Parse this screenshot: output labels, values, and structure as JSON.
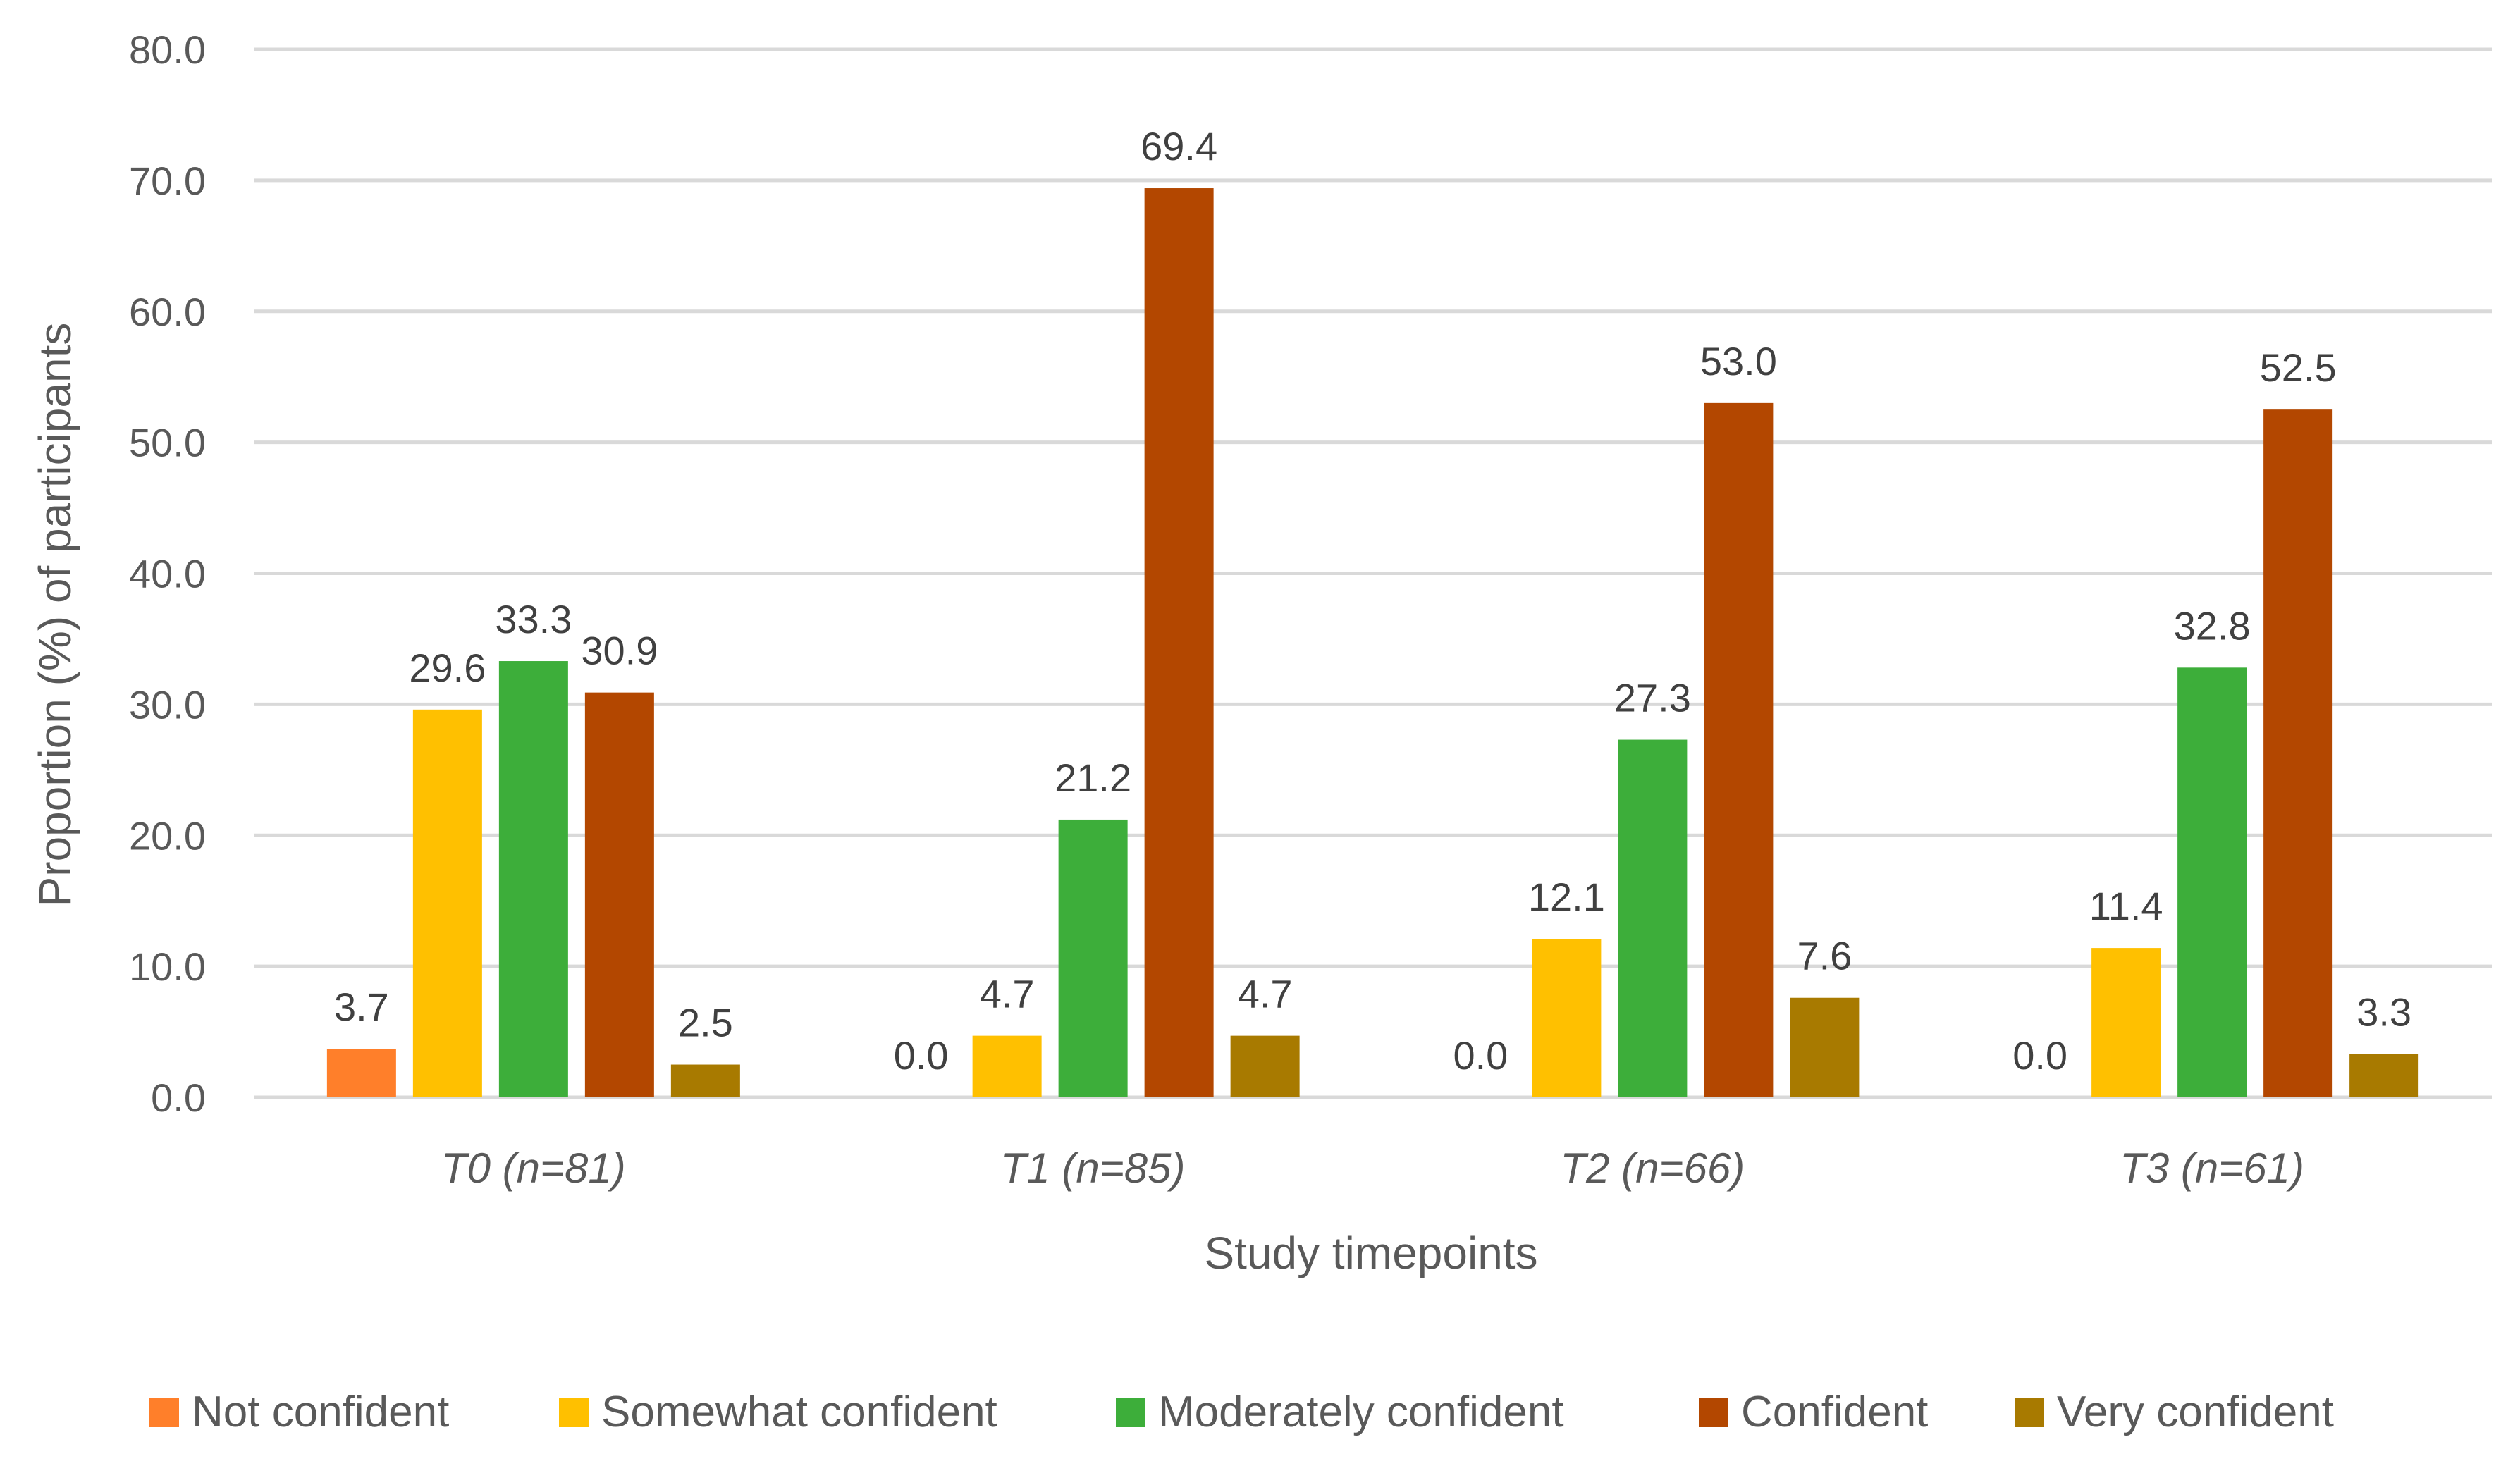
{
  "chart_data": {
    "type": "bar",
    "categories": [
      "T0 (n=81)",
      "T1 (n=85)",
      "T2 (n=66)",
      "T3 (n=61)"
    ],
    "series": [
      {
        "name": "Not confident",
        "color": "#FF7F2A",
        "values": [
          3.7,
          0.0,
          0.0,
          0.0
        ],
        "labels": [
          "3.7",
          "0.0",
          "0.0",
          "0.0"
        ]
      },
      {
        "name": "Somewhat confident",
        "color": "#FFC000",
        "values": [
          29.6,
          4.7,
          12.1,
          11.4
        ],
        "labels": [
          "29.6",
          "4.7",
          "12.1",
          "11.4"
        ]
      },
      {
        "name": "Moderately confident",
        "color": "#3DAE3A",
        "values": [
          33.3,
          21.2,
          27.3,
          32.8
        ],
        "labels": [
          "33.3",
          "21.2",
          "27.3",
          "32.8"
        ]
      },
      {
        "name": "Confident",
        "color": "#B34700",
        "values": [
          30.9,
          69.4,
          53.0,
          52.5
        ],
        "labels": [
          "30.9",
          "69.4",
          "53.0",
          "52.5"
        ]
      },
      {
        "name": "Very confident",
        "color": "#A87A00",
        "values": [
          2.5,
          4.7,
          7.6,
          3.3
        ],
        "labels": [
          "2.5",
          "4.7",
          "7.6",
          "3.3"
        ]
      }
    ],
    "xlabel": "Study timepoints",
    "ylabel": "Proportion (%) of participants",
    "ylim": [
      0,
      80
    ],
    "yticks": [
      "0.0",
      "10.0",
      "20.0",
      "30.0",
      "40.0",
      "50.0",
      "60.0",
      "70.0",
      "80.0"
    ],
    "grid": true,
    "legend_position": "bottom"
  }
}
